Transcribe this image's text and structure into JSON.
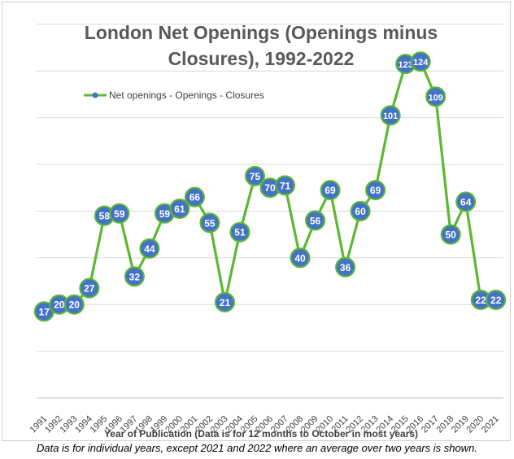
{
  "chart_data": {
    "type": "line",
    "title": "London Net Openings (Openings minus Closures), 1992-2022",
    "title_lines": [
      "London Net Openings (Openings minus",
      "Closures), 1992-2022"
    ],
    "xlabel": "Year of Publication (Data is  for 12 months to October in most years)",
    "ylabel": "",
    "ylim": [
      -20,
      140
    ],
    "grid": true,
    "legend_position": "top-left",
    "categories": [
      "1991",
      "1992",
      "1993",
      "1994",
      "1995",
      "1996",
      "1997",
      "1998",
      "1999",
      "2000",
      "2001",
      "2002",
      "2003",
      "2004",
      "2005",
      "2006",
      "2007",
      "2008",
      "2009",
      "2010",
      "2011",
      "2012",
      "2013",
      "2014",
      "2015",
      "2016",
      "2017",
      "2018",
      "2019",
      "2020",
      "2021"
    ],
    "series": [
      {
        "name": "Net openings - Openings - Closures",
        "line_color": "#5cb832",
        "marker_color": "#4472c4",
        "values": [
          17,
          20,
          20,
          27,
          58,
          59,
          32,
          44,
          59,
          61,
          66,
          55,
          21,
          51,
          75,
          70,
          71,
          40,
          56,
          69,
          36,
          60,
          69,
          101,
          123,
          124,
          109,
          50,
          64,
          22,
          22
        ]
      }
    ]
  },
  "footnote": "Data is for individual years, except 2021 and 2022 where an average over two years is shown."
}
